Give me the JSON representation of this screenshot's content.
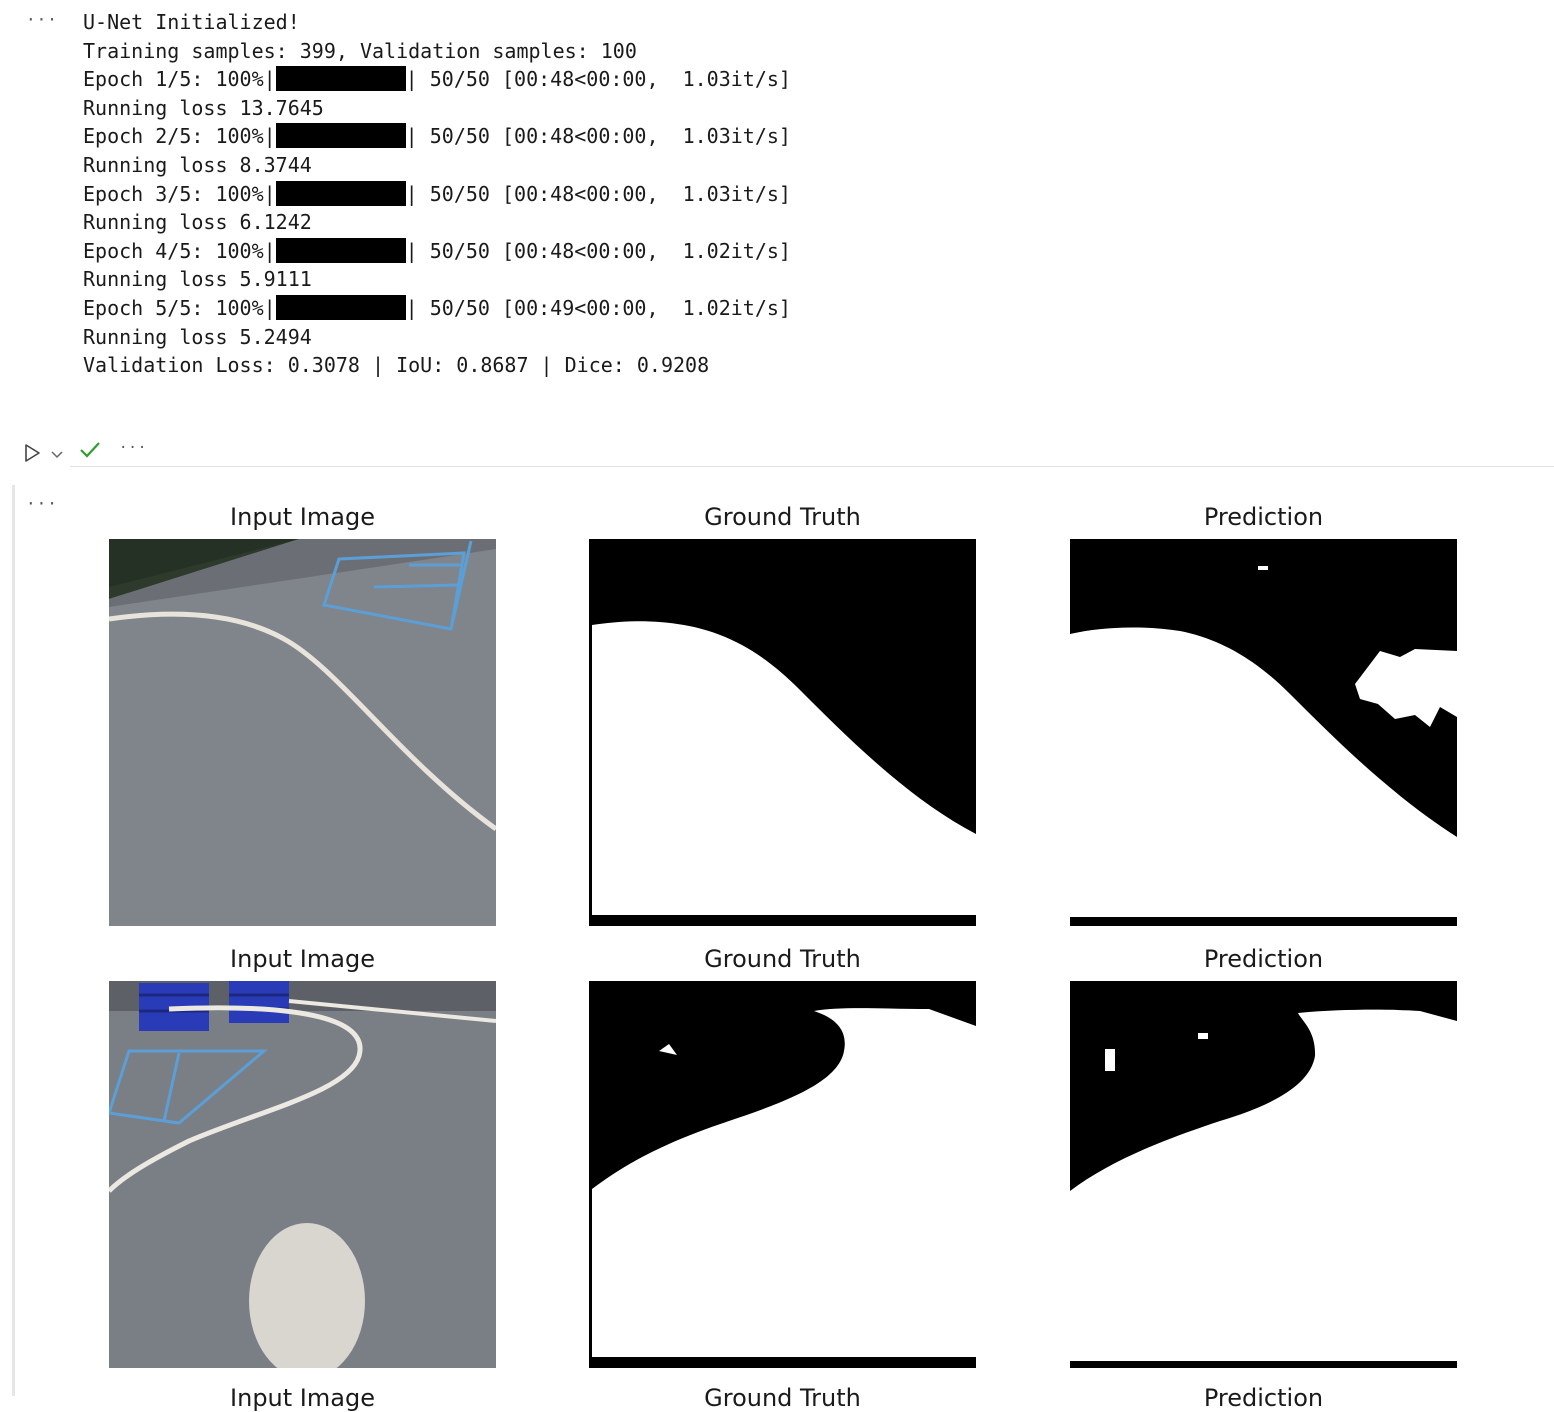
{
  "output_1": {
    "lines": [
      "U-Net Initialized!",
      "Training samples: 399, Validation samples: 100",
      {
        "label": "Epoch 1/5: 100%",
        "stats": "| 50/50 [00:48<00:00,  1.03it/s]",
        "progress": 1.0
      },
      "Running loss 13.7645",
      {
        "label": "Epoch 2/5: 100%",
        "stats": "| 50/50 [00:48<00:00,  1.03it/s]",
        "progress": 1.0
      },
      "Running loss 8.3744",
      {
        "label": "Epoch 3/5: 100%",
        "stats": "| 50/50 [00:48<00:00,  1.03it/s]",
        "progress": 1.0
      },
      "Running loss 6.1242",
      {
        "label": "Epoch 4/5: 100%",
        "stats": "| 50/50 [00:48<00:00,  1.02it/s]",
        "progress": 1.0
      },
      "Running loss 5.9111",
      {
        "label": "Epoch 5/5: 100%",
        "stats": "| 50/50 [00:49<00:00,  1.02it/s]",
        "progress": 1.0
      },
      "Running loss 5.2494",
      "Validation Loss: 0.3078 | IoU: 0.8687 | Dice: 0.9208"
    ]
  },
  "cell_toolbar": {
    "more_label": "···",
    "run_icon": "play-icon",
    "run_menu_icon": "chevron-down-icon",
    "status_icon": "check-icon",
    "status_color": "#2e9f2e"
  },
  "output_2": {
    "more_label": "···",
    "titles": {
      "input": "Input Image",
      "ground_truth": "Ground Truth",
      "prediction": "Prediction"
    }
  }
}
